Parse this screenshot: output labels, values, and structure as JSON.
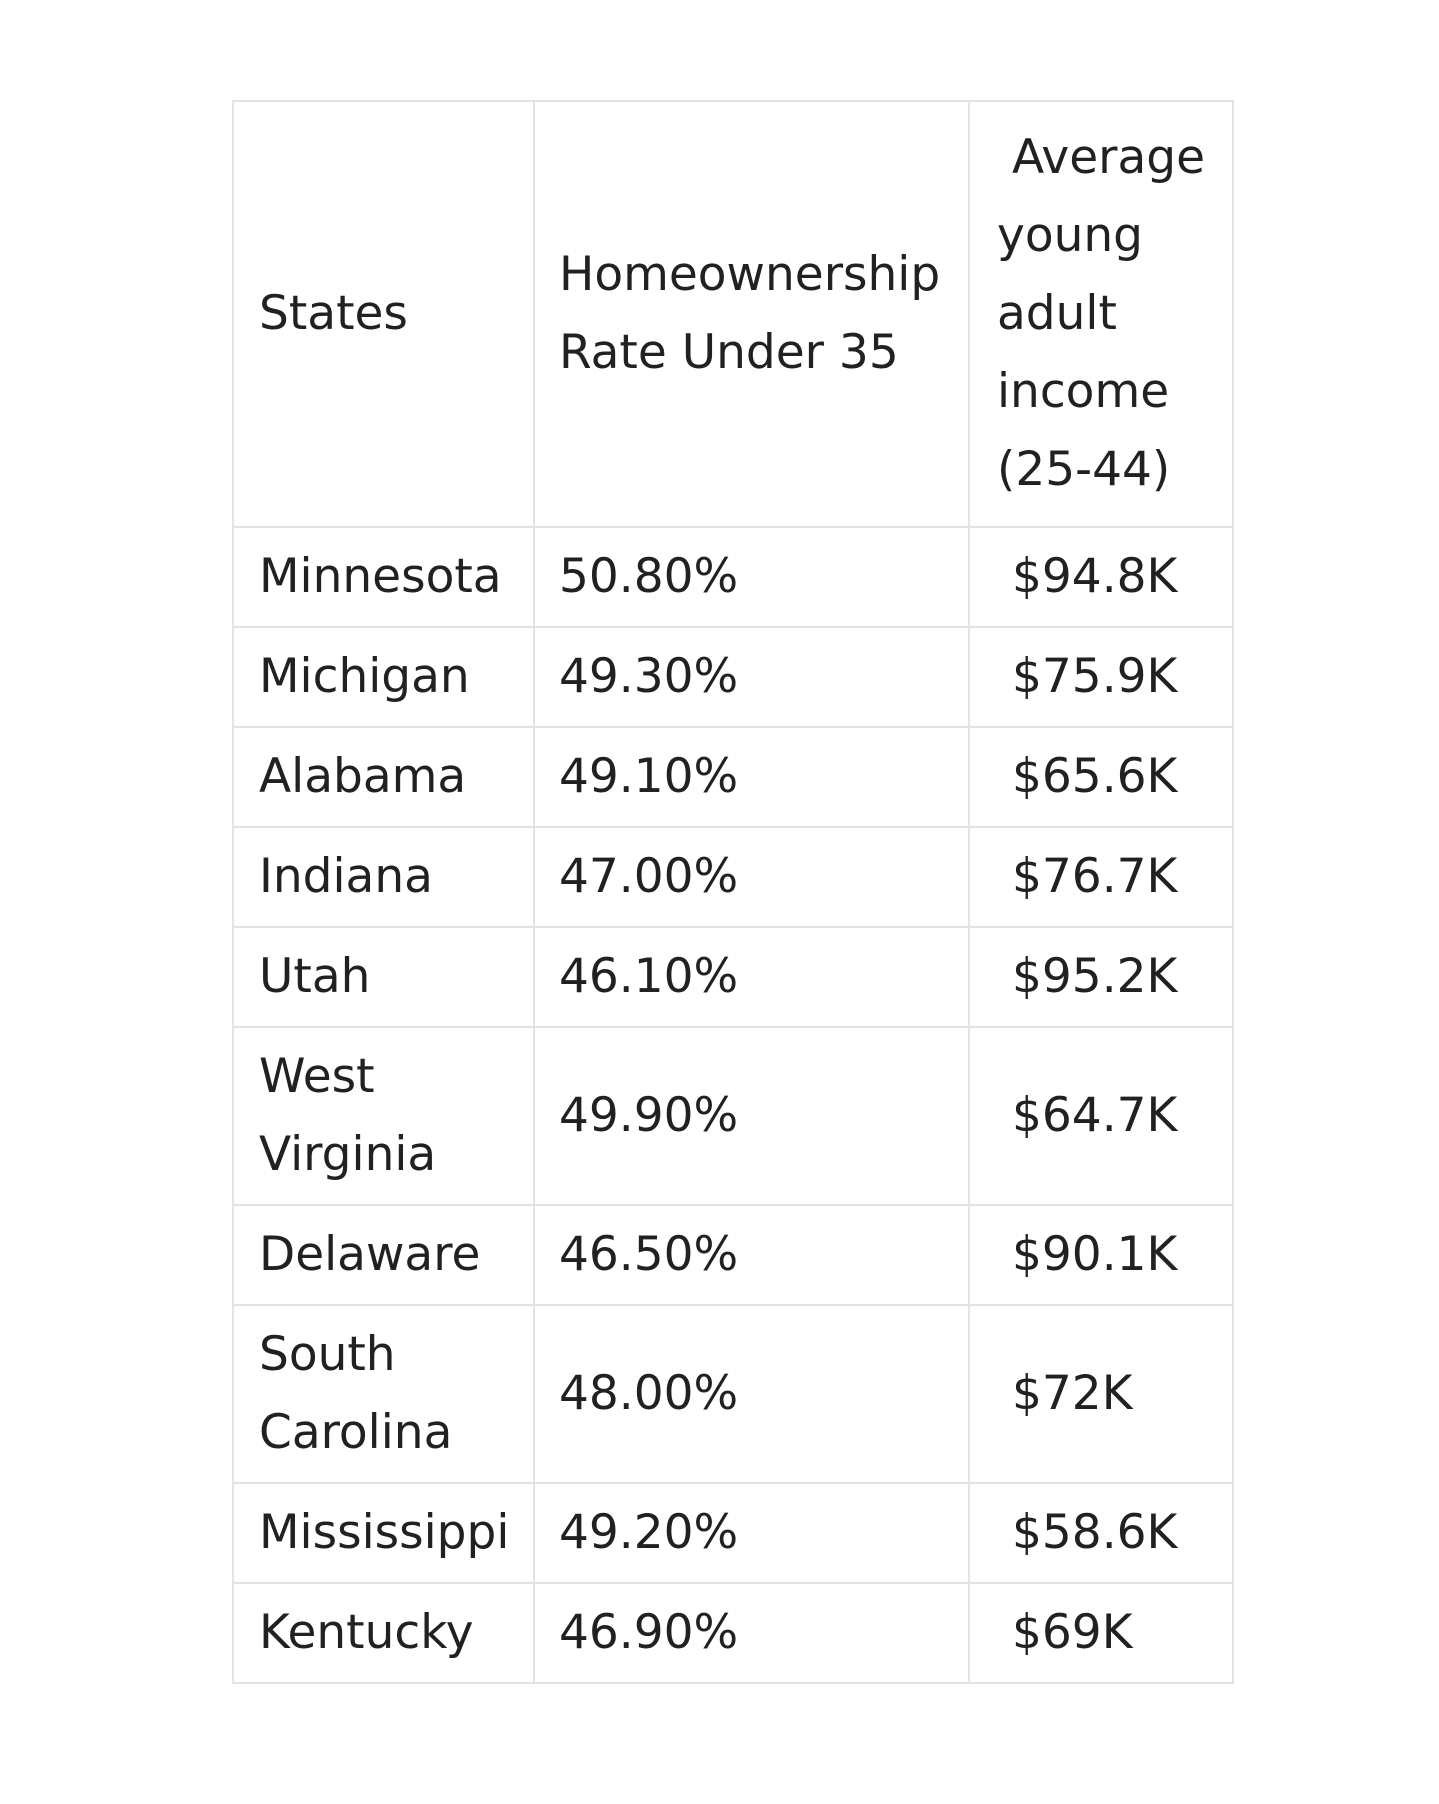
{
  "page": {
    "background_color": "#ffffff"
  },
  "table": {
    "colors": {
      "border": "#e3e3e3",
      "text": "#202122",
      "cell_background": "#ffffff"
    },
    "headers": {
      "states": "States",
      "rate": "Homeownership Rate Under 35",
      "income": "Average young adult income (25-44)"
    },
    "rows": [
      {
        "state": "Minnesota",
        "rate": "50.80%",
        "income": "$94.8K"
      },
      {
        "state": "Michigan",
        "rate": "49.30%",
        "income": "$75.9K"
      },
      {
        "state": "Alabama",
        "rate": "49.10%",
        "income": "$65.6K"
      },
      {
        "state": "Indiana",
        "rate": "47.00%",
        "income": "$76.7K"
      },
      {
        "state": "Utah",
        "rate": "46.10%",
        "income": "$95.2K"
      },
      {
        "state": "West Virginia",
        "rate": "49.90%",
        "income": "$64.7K"
      },
      {
        "state": "Delaware",
        "rate": "46.50%",
        "income": "$90.1K"
      },
      {
        "state": "South Carolina",
        "rate": "48.00%",
        "income": "$72K"
      },
      {
        "state": "Mississippi",
        "rate": "49.20%",
        "income": "$58.6K"
      },
      {
        "state": "Kentucky",
        "rate": "46.90%",
        "income": "$69K"
      }
    ]
  }
}
